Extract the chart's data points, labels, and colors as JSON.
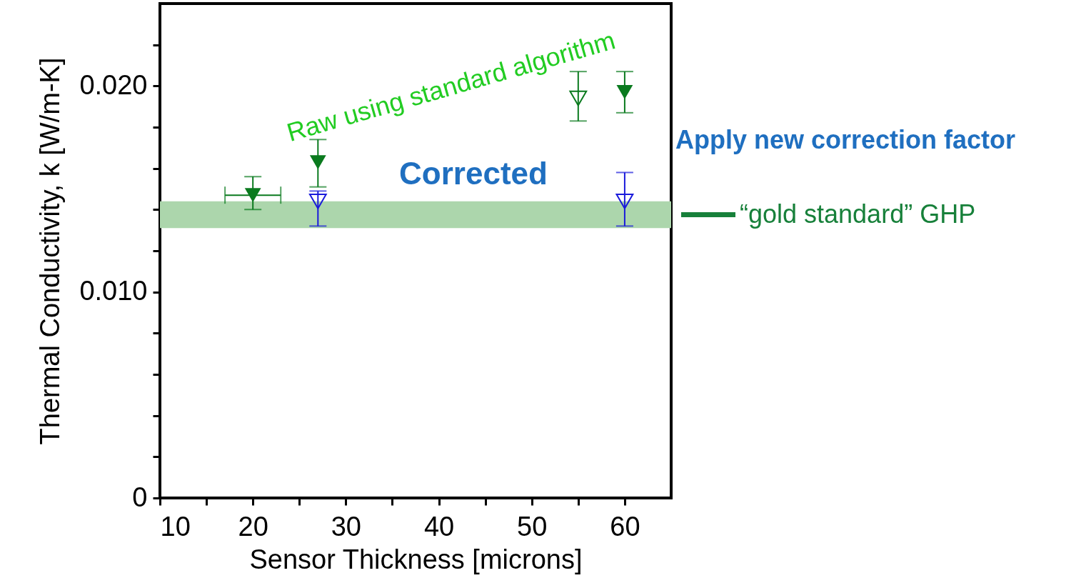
{
  "chart_data": {
    "type": "scatter",
    "xlabel": "Sensor Thickness [microns]",
    "ylabel": "Thermal Conductivity, k [W/m-K]",
    "xlim": [
      10,
      65
    ],
    "xticks": [
      10,
      {
        "value": 15,
        "label": null
      },
      20,
      {
        "value": 25,
        "label": null
      },
      30,
      {
        "value": 35,
        "label": null
      },
      40,
      {
        "value": 45,
        "label": null
      },
      50,
      {
        "value": 55,
        "label": null
      },
      60
    ],
    "ylim": [
      0,
      0.024
    ],
    "yticks": [
      0,
      {
        "value": 0.002,
        "label": null
      },
      {
        "value": 0.004,
        "label": null
      },
      {
        "value": 0.006,
        "label": null
      },
      {
        "value": 0.008,
        "label": null
      },
      {
        "value": 0.01,
        "label": "0.010"
      },
      {
        "value": 0.012,
        "label": null
      },
      {
        "value": 0.014,
        "label": null
      },
      {
        "value": 0.016,
        "label": null
      },
      {
        "value": 0.018,
        "label": null
      },
      {
        "value": 0.02,
        "label": "0.020"
      },
      {
        "value": 0.022,
        "label": null
      }
    ],
    "marker": "triangle",
    "grid": false,
    "series": [
      {
        "color": "#0a7a1e",
        "x": [
          20,
          27,
          60
        ],
        "values": [
          0.0147,
          0.0163,
          0.0197
        ],
        "errors": [
          [
            0.014,
            0.0156
          ],
          [
            0.0151,
            0.0174
          ],
          [
            0.0187,
            0.0207
          ]
        ],
        "xerrors": [
          [
            17,
            23
          ],
          null,
          null
        ]
      },
      {
        "color": "#0a7a1e",
        "x": [
          55
        ],
        "values": [
          0.0194
        ],
        "errors": [
          [
            0.0183,
            0.0207
          ]
        ]
      },
      {
        "color": "#1a1adb",
        "x": [
          27,
          60
        ],
        "values": [
          0.0144,
          0.0144
        ],
        "errors": [
          [
            0.0132,
            0.0149
          ],
          [
            0.0132,
            0.0158
          ]
        ]
      }
    ],
    "bands": [
      {
        "axis": "y",
        "from": 0.0131,
        "to": 0.0144,
        "label": "“gold standard” GHP",
        "color": "#acd6ac"
      }
    ],
    "annotations": [
      "Raw using standard algorithm",
      "Corrected",
      "Apply new correction factor"
    ]
  }
}
